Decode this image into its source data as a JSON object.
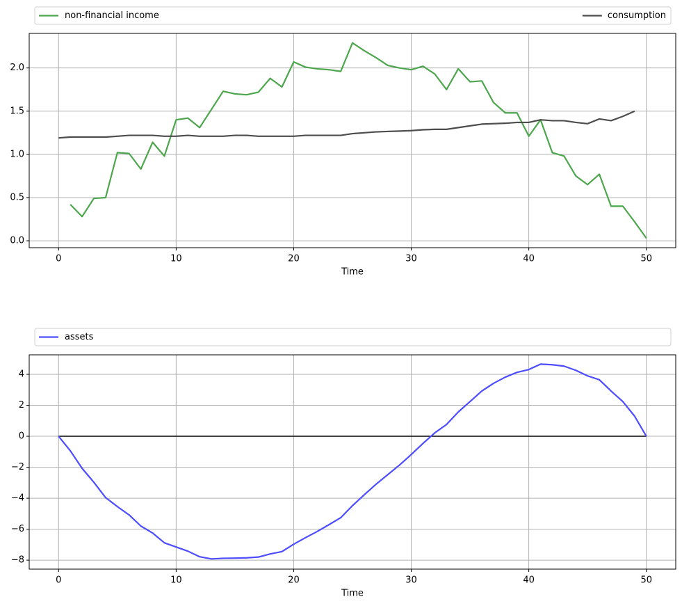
{
  "chart_data": [
    {
      "type": "line",
      "xlabel": "Time",
      "x": [
        0,
        1,
        2,
        3,
        4,
        5,
        6,
        7,
        8,
        9,
        10,
        11,
        12,
        13,
        14,
        15,
        16,
        17,
        18,
        19,
        20,
        21,
        22,
        23,
        24,
        25,
        26,
        27,
        28,
        29,
        30,
        31,
        32,
        33,
        34,
        35,
        36,
        37,
        38,
        39,
        40,
        41,
        42,
        43,
        44,
        45,
        46,
        47,
        48,
        49,
        50
      ],
      "series": [
        {
          "name": "non-financial income",
          "color": "#4da64d",
          "values": [
            null,
            0.42,
            0.28,
            0.49,
            0.5,
            1.02,
            1.01,
            0.83,
            1.14,
            0.98,
            1.4,
            1.42,
            1.31,
            1.52,
            1.73,
            1.7,
            1.69,
            1.72,
            1.88,
            1.78,
            2.07,
            2.01,
            1.99,
            1.98,
            1.96,
            2.29,
            2.2,
            2.12,
            2.03,
            2.0,
            1.98,
            2.02,
            1.93,
            1.75,
            1.99,
            1.84,
            1.85,
            1.6,
            1.48,
            1.48,
            1.21,
            1.4,
            1.02,
            0.98,
            0.75,
            0.65,
            0.77,
            0.4,
            0.4,
            0.22,
            0.03
          ]
        },
        {
          "name": "consumption",
          "color": "#4d4d4d",
          "values": [
            1.19,
            1.2,
            1.2,
            1.2,
            1.2,
            1.21,
            1.22,
            1.22,
            1.22,
            1.21,
            1.21,
            1.22,
            1.21,
            1.21,
            1.21,
            1.22,
            1.22,
            1.21,
            1.21,
            1.21,
            1.21,
            1.22,
            1.22,
            1.22,
            1.22,
            1.24,
            1.25,
            1.26,
            1.265,
            1.27,
            1.275,
            1.285,
            1.29,
            1.29,
            1.31,
            1.33,
            1.35,
            1.355,
            1.36,
            1.37,
            1.37,
            1.4,
            1.39,
            1.39,
            1.37,
            1.355,
            1.41,
            1.39,
            1.44,
            1.5,
            null
          ]
        }
      ],
      "xlim": [
        -2.5,
        52.5
      ],
      "xticks": [
        0,
        10,
        20,
        30,
        40,
        50
      ],
      "ylim": [
        -0.08,
        2.4
      ],
      "yticks": [
        {
          "value": 0,
          "label": "0.0"
        },
        {
          "value": 0.5,
          "label": "0.5"
        },
        {
          "value": 1,
          "label": "1.0"
        },
        {
          "value": 1.5,
          "label": "1.5"
        },
        {
          "value": 2,
          "label": "2.0"
        }
      ],
      "grid": true,
      "legend": "above"
    },
    {
      "type": "line",
      "xlabel": "Time",
      "x": [
        0,
        1,
        2,
        3,
        4,
        5,
        6,
        7,
        8,
        9,
        10,
        11,
        12,
        13,
        14,
        15,
        16,
        17,
        18,
        19,
        20,
        21,
        22,
        23,
        24,
        25,
        26,
        27,
        28,
        29,
        30,
        31,
        32,
        33,
        34,
        35,
        36,
        37,
        38,
        39,
        40,
        41,
        42,
        43,
        44,
        45,
        46,
        47,
        48,
        49,
        50
      ],
      "series": [
        {
          "name": "assets",
          "color": "#4d4dff",
          "values": [
            0,
            -0.94,
            -2.07,
            -2.97,
            -3.96,
            -4.54,
            -5.08,
            -5.8,
            -6.25,
            -6.88,
            -7.15,
            -7.42,
            -7.78,
            -7.92,
            -7.88,
            -7.87,
            -7.85,
            -7.8,
            -7.6,
            -7.45,
            -6.97,
            -6.55,
            -6.15,
            -5.71,
            -5.26,
            -4.48,
            -3.78,
            -3.1,
            -2.48,
            -1.86,
            -1.18,
            -0.46,
            0.22,
            0.76,
            1.57,
            2.24,
            2.92,
            3.42,
            3.82,
            4.13,
            4.31,
            4.66,
            4.62,
            4.53,
            4.26,
            3.9,
            3.65,
            2.92,
            2.24,
            1.3,
            0
          ]
        }
      ],
      "hline": 0,
      "hline_color": "#000000",
      "xlim": [
        -2.5,
        52.5
      ],
      "xticks": [
        0,
        10,
        20,
        30,
        40,
        50
      ],
      "ylim": [
        -8.58,
        5.26
      ],
      "yticks": [
        {
          "value": -8,
          "label": "−8"
        },
        {
          "value": -6,
          "label": "−6"
        },
        {
          "value": -4,
          "label": "−4"
        },
        {
          "value": -2,
          "label": "−2"
        },
        0,
        2,
        4
      ],
      "grid": true,
      "legend": "above"
    }
  ]
}
